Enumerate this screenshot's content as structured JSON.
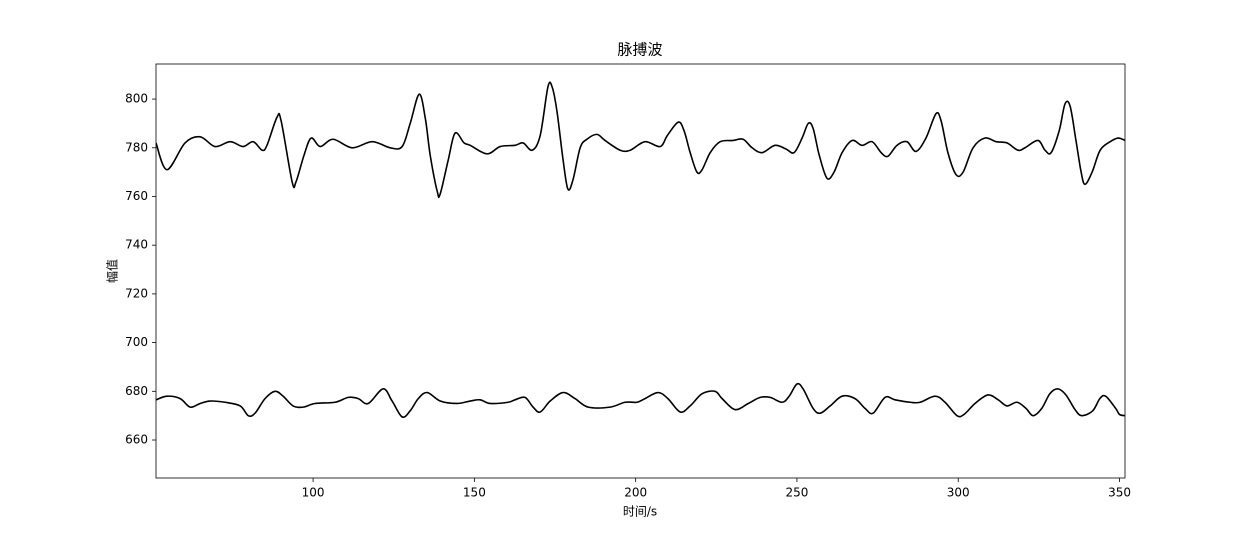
{
  "chart_data": {
    "type": "line",
    "title": "脉搏波",
    "xlabel": "时间/s",
    "ylabel": "幅值",
    "xlim": [
      51.3,
      351.7
    ],
    "xticks": [
      100,
      150,
      200,
      250,
      300,
      350
    ],
    "ylim": [
      644.4,
      814.4
    ],
    "yticks": [
      660,
      680,
      700,
      720,
      740,
      760,
      780,
      800
    ],
    "series": [
      {
        "color": "#000000",
        "x": [
          51.3,
          54.7,
          60.3,
          65.0,
          69.6,
          74.3,
          78.3,
          81.4,
          84.2,
          85.7,
          88.8,
          90.1,
          93.5,
          94.7,
          97.2,
          99.4,
          102.2,
          106.2,
          112.1,
          118.3,
          123.9,
          127.6,
          130.1,
          132.9,
          134.8,
          136.3,
          138.5,
          139.4,
          141.9,
          144.0,
          146.8,
          148.7,
          153.9,
          158.0,
          162.6,
          165.1,
          167.9,
          170.4,
          172.8,
          174.1,
          175.6,
          177.5,
          179.0,
          180.6,
          182.8,
          184.9,
          188.0,
          190.5,
          195.2,
          198.3,
          202.9,
          207.6,
          209.8,
          213.2,
          215.0,
          216.9,
          219.0,
          220.6,
          223.1,
          226.2,
          230.2,
          233.3,
          236.1,
          239.2,
          243.2,
          246.6,
          249.1,
          251.6,
          253.5,
          255.0,
          256.9,
          259.3,
          261.5,
          264.0,
          267.1,
          270.2,
          273.3,
          276.1,
          278.2,
          281.0,
          284.1,
          286.9,
          290.0,
          293.1,
          294.7,
          296.8,
          299.3,
          301.5,
          304.6,
          308.3,
          311.7,
          315.1,
          318.5,
          320.7,
          324.7,
          326.9,
          328.8,
          331.3,
          333.1,
          334.7,
          336.5,
          338.1,
          339.3,
          341.5,
          344.0,
          347.1,
          349.6,
          351.7
        ],
        "values": [
          782,
          771,
          782,
          784.5,
          780.5,
          782.5,
          780.5,
          782.5,
          779,
          781,
          792.5,
          791,
          766,
          766,
          777,
          784,
          780.5,
          783.5,
          780,
          782.5,
          780,
          780.5,
          790,
          802,
          792,
          777,
          762,
          761,
          775,
          786,
          782,
          781,
          777.5,
          780.5,
          781,
          782,
          779,
          785,
          805,
          805,
          795,
          775,
          763,
          767,
          780,
          783.5,
          785.5,
          783,
          779,
          779,
          782.5,
          780.5,
          785,
          790.5,
          787,
          778,
          770,
          771,
          778,
          782.5,
          783,
          783.5,
          780,
          778,
          781,
          779.5,
          778,
          784,
          790,
          788,
          777,
          767.5,
          770,
          778,
          783,
          781,
          782.5,
          778,
          776.5,
          781,
          782.5,
          778.5,
          784,
          794,
          791,
          778,
          769,
          770,
          780,
          784,
          782.5,
          782,
          779,
          780,
          783,
          779,
          778,
          787,
          798,
          797,
          783,
          770,
          765,
          770,
          779,
          782.5,
          784,
          783
        ]
      },
      {
        "color": "#000000",
        "x": [
          51.3,
          54.7,
          58.8,
          61.9,
          65.0,
          68.1,
          72.7,
          77.4,
          79.9,
          82.0,
          85.1,
          88.2,
          90.7,
          93.8,
          96.9,
          100.6,
          106.8,
          110.9,
          114.0,
          117.1,
          121.7,
          124.5,
          127.6,
          130.1,
          132.6,
          135.4,
          139.4,
          144.6,
          148.7,
          151.8,
          154.9,
          160.5,
          162.6,
          165.7,
          168.2,
          170.4,
          173.5,
          177.5,
          181.2,
          185.3,
          192.1,
          196.7,
          200.4,
          202.9,
          206.9,
          210.0,
          213.8,
          216.9,
          220.6,
          224.6,
          226.8,
          230.8,
          234.9,
          238.6,
          241.7,
          245.4,
          247.6,
          250.0,
          251.9,
          255.0,
          257.2,
          260.3,
          264.0,
          268.0,
          271.1,
          273.6,
          277.3,
          280.4,
          285.1,
          288.2,
          292.8,
          295.9,
          299.6,
          301.8,
          305.2,
          309.2,
          312.4,
          315.1,
          318.2,
          321.0,
          323.2,
          325.9,
          328.4,
          330.9,
          333.4,
          336.2,
          338.3,
          341.7,
          343.9,
          345.7,
          348.8,
          350.0,
          351.7
        ],
        "values": [
          676.5,
          678,
          677,
          673.5,
          675,
          676,
          675.5,
          674,
          670,
          671,
          677,
          680,
          678,
          674,
          673.5,
          675,
          675.5,
          677.5,
          677,
          675,
          681,
          676,
          669.5,
          672,
          677,
          679.5,
          676,
          675,
          676,
          676.5,
          675,
          675.5,
          676.5,
          677.5,
          673.5,
          671.5,
          676,
          679.5,
          677,
          673.5,
          673.5,
          675.5,
          675.5,
          677,
          679.5,
          677,
          671.5,
          674,
          679,
          680,
          677,
          672.5,
          675,
          677.5,
          677.5,
          675.5,
          678,
          683,
          681,
          673,
          671,
          674,
          678,
          677,
          673,
          671,
          677.5,
          676.5,
          675.5,
          675.5,
          678,
          675.5,
          670,
          670.5,
          675,
          678.5,
          676.5,
          674,
          675.5,
          673,
          670,
          673,
          679,
          681,
          678.5,
          672.5,
          670,
          672,
          677,
          678,
          673,
          670.5,
          670
        ]
      }
    ]
  }
}
